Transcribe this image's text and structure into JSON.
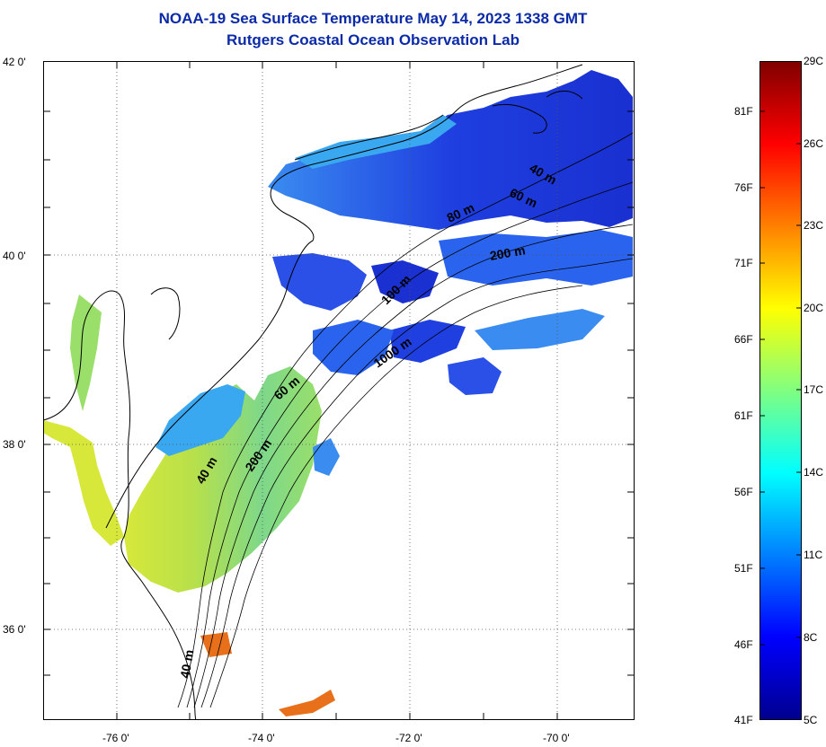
{
  "title": {
    "line1": "NOAA-19 Sea Surface Temperature May 14, 2023 1338 GMT",
    "line2": "Rutgers Coastal Ocean Observation Lab"
  },
  "axes": {
    "lat_labels": [
      "42 0'",
      "40 0'",
      "38 0'",
      "36 0'"
    ],
    "lon_labels": [
      "-76 0'",
      "-74 0'",
      "-72 0'",
      "-70 0'"
    ],
    "lat_range": [
      35.0,
      42.0
    ],
    "lon_range": [
      -77.0,
      -69.0
    ],
    "grid": "dotted"
  },
  "contours": {
    "labels": [
      "40 m",
      "60 m",
      "80 m",
      "200 m",
      "100 m",
      "1000 m",
      "60 m",
      "200 m",
      "40 m",
      "40 m"
    ]
  },
  "colorbar": {
    "fahrenheit": [
      "81F",
      "76F",
      "71F",
      "66F",
      "61F",
      "56F",
      "51F",
      "46F",
      "41F"
    ],
    "celsius": [
      "29C",
      "26C",
      "23C",
      "20C",
      "17C",
      "14C",
      "11C",
      "8C",
      "5C"
    ],
    "colors": [
      "#00008f",
      "#0000ff",
      "#0080ff",
      "#00ffff",
      "#80ff80",
      "#ffff00",
      "#ff8000",
      "#ff0000",
      "#800000"
    ]
  },
  "colors": {
    "title": "#0b2aa8",
    "cold_water": "#1f3fe0",
    "mid_water": "#3aa8f0",
    "warm_water": "#cde83a",
    "hot_water": "#e8701a"
  }
}
